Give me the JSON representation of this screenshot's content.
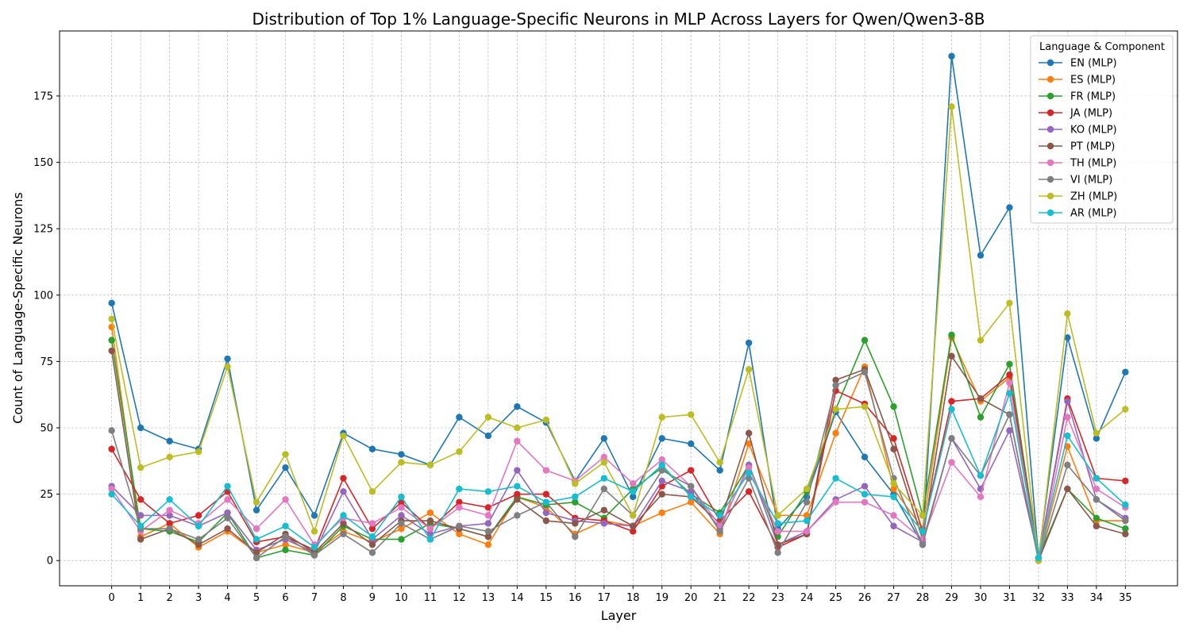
{
  "chart_data": {
    "type": "line",
    "title": "Distribution of Top 1% Language-Specific Neurons in MLP Across Layers for Qwen/Qwen3-8B",
    "xlabel": "Layer",
    "ylabel": "Count of Language-Specific Neurons",
    "x": [
      0,
      1,
      2,
      3,
      4,
      5,
      6,
      7,
      8,
      9,
      10,
      11,
      12,
      13,
      14,
      15,
      16,
      17,
      18,
      19,
      20,
      21,
      22,
      23,
      24,
      25,
      26,
      27,
      28,
      29,
      30,
      31,
      32,
      33,
      34,
      35
    ],
    "xlim": [
      -1.8,
      36.8
    ],
    "ylim": [
      -9.5,
      199.5
    ],
    "yticks": [
      0,
      25,
      50,
      75,
      100,
      125,
      150,
      175
    ],
    "grid": true,
    "legend_title": "Language & Component",
    "legend_position": "top-right",
    "series": [
      {
        "name": "EN (MLP)",
        "color": "#1f77b4",
        "values": [
          97,
          50,
          45,
          42,
          76,
          19,
          35,
          17,
          48,
          42,
          40,
          36,
          54,
          47,
          58,
          52,
          30,
          46,
          24,
          46,
          44,
          34,
          82,
          12,
          24,
          56,
          39,
          25,
          6,
          190,
          115,
          133,
          1,
          84,
          46,
          71
        ]
      },
      {
        "name": "ES (MLP)",
        "color": "#ff7f0e",
        "values": [
          88,
          9,
          14,
          5,
          11,
          3,
          6,
          3,
          11,
          7,
          12,
          18,
          10,
          6,
          24,
          20,
          10,
          15,
          13,
          18,
          22,
          10,
          44,
          17,
          17,
          48,
          73,
          27,
          12,
          84,
          60,
          69,
          0,
          43,
          15,
          15
        ]
      },
      {
        "name": "FR (MLP)",
        "color": "#2ca02c",
        "values": [
          83,
          12,
          11,
          7,
          18,
          1,
          4,
          2,
          13,
          8,
          8,
          14,
          12,
          9,
          24,
          21,
          22,
          16,
          27,
          35,
          25,
          18,
          36,
          9,
          26,
          57,
          83,
          58,
          17,
          85,
          54,
          74,
          1,
          27,
          16,
          12
        ]
      },
      {
        "name": "JA (MLP)",
        "color": "#d62728",
        "values": [
          42,
          23,
          14,
          17,
          26,
          7,
          9,
          4,
          31,
          12,
          22,
          12,
          22,
          20,
          25,
          25,
          16,
          15,
          11,
          28,
          34,
          15,
          26,
          5,
          10,
          64,
          59,
          46,
          11,
          60,
          61,
          70,
          1,
          61,
          31,
          30
        ]
      },
      {
        "name": "KO (MLP)",
        "color": "#9467bd",
        "values": [
          28,
          17,
          17,
          13,
          18,
          4,
          8,
          3,
          26,
          8,
          17,
          10,
          13,
          14,
          34,
          18,
          15,
          14,
          13,
          30,
          26,
          12,
          36,
          6,
          11,
          23,
          28,
          13,
          7,
          46,
          27,
          49,
          1,
          60,
          23,
          16
        ]
      },
      {
        "name": "PT (MLP)",
        "color": "#8c564b",
        "values": [
          79,
          8,
          12,
          6,
          12,
          3,
          10,
          3,
          14,
          6,
          15,
          15,
          12,
          9,
          23,
          15,
          14,
          19,
          13,
          25,
          24,
          14,
          48,
          6,
          10,
          68,
          72,
          42,
          8,
          77,
          61,
          55,
          0,
          27,
          13,
          10
        ]
      },
      {
        "name": "TH (MLP)",
        "color": "#e377c2",
        "values": [
          27,
          11,
          19,
          14,
          23,
          12,
          23,
          6,
          16,
          14,
          20,
          12,
          20,
          17,
          45,
          34,
          30,
          39,
          29,
          38,
          28,
          13,
          35,
          11,
          11,
          22,
          22,
          17,
          8,
          37,
          24,
          67,
          0,
          54,
          27,
          20
        ]
      },
      {
        "name": "VI (MLP)",
        "color": "#7f7f7f",
        "values": [
          49,
          12,
          12,
          8,
          16,
          1,
          9,
          2,
          10,
          3,
          14,
          8,
          13,
          11,
          17,
          22,
          9,
          27,
          17,
          34,
          28,
          11,
          31,
          3,
          22,
          66,
          71,
          31,
          6,
          46,
          32,
          55,
          0,
          36,
          23,
          15
        ]
      },
      {
        "name": "ZH (MLP)",
        "color": "#bcbd22",
        "values": [
          91,
          35,
          39,
          41,
          73,
          22,
          40,
          11,
          47,
          26,
          37,
          36,
          41,
          54,
          50,
          53,
          29,
          37,
          17,
          54,
          55,
          37,
          72,
          17,
          27,
          57,
          58,
          29,
          17,
          171,
          83,
          97,
          0,
          93,
          48,
          57
        ]
      },
      {
        "name": "AR (MLP)",
        "color": "#17becf",
        "values": [
          25,
          13,
          23,
          13,
          28,
          8,
          13,
          5,
          17,
          9,
          24,
          8,
          27,
          26,
          28,
          22,
          24,
          31,
          26,
          36,
          24,
          17,
          33,
          14,
          15,
          31,
          25,
          24,
          11,
          57,
          32,
          63,
          1,
          47,
          31,
          21
        ]
      }
    ]
  }
}
